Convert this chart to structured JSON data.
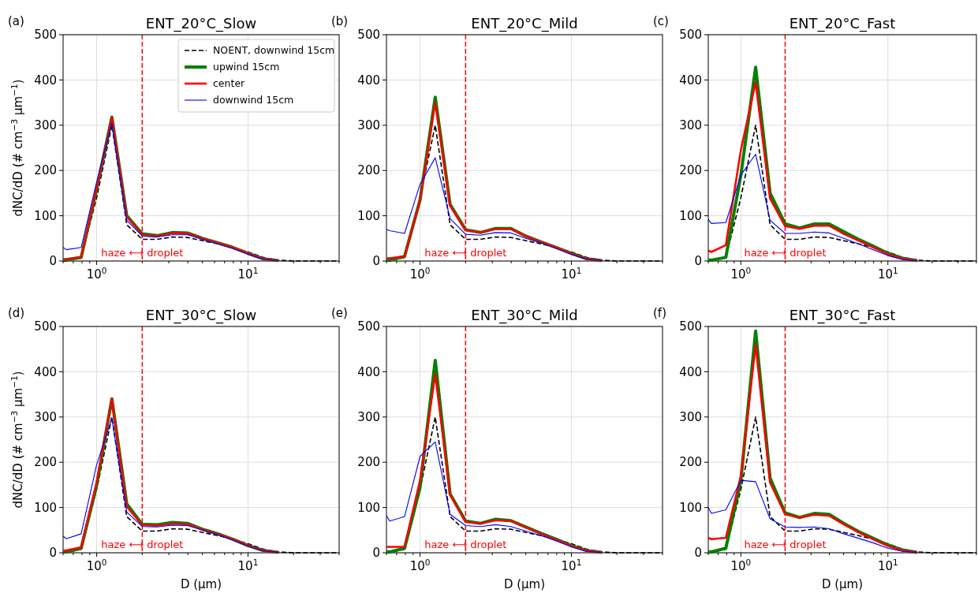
{
  "chart_data": [
    {
      "type": "line",
      "title": "ENT_20°C_Slow",
      "ylabel": "dNC/dD (# cm$^{−3}$ μm$^{−1}$)",
      "annotations": [
        "(a)"
      ],
      "log": "x",
      "grid": true,
      "legend": "top right",
      "xlim": [
        0.6,
        40
      ],
      "ylim": [
        0,
        500
      ],
      "xticks": [
        {
          "value": 0.6,
          "label": null
        },
        {
          "value": 0.7,
          "label": null
        },
        {
          "value": 0.8,
          "label": null
        },
        {
          "value": 0.9,
          "label": null
        },
        {
          "value": 1,
          "label": "10$^{0}$"
        },
        {
          "value": 2,
          "label": null
        },
        {
          "value": 3,
          "label": null
        },
        {
          "value": 4,
          "label": null
        },
        {
          "value": 5,
          "label": null
        },
        {
          "value": 6,
          "label": null
        },
        {
          "value": 7,
          "label": null
        },
        {
          "value": 8,
          "label": null
        },
        {
          "value": 9,
          "label": null
        },
        {
          "value": 10,
          "label": "10$^{1}$"
        },
        {
          "value": 20,
          "label": null
        },
        {
          "value": 30,
          "label": null
        },
        {
          "value": 40,
          "label": null
        }
      ],
      "yticks": [
        0,
        100,
        200,
        300,
        400,
        500
      ],
      "ref_lines": [
        {
          "axis": "x",
          "value": 2,
          "label": "haze ⟷ droplet",
          "color": "#ff0000",
          "line_style": "dashed"
        }
      ],
      "x": [
        0.6,
        0.63,
        0.79,
        1,
        1.26,
        1.58,
        2,
        2.51,
        3.16,
        3.98,
        5.01,
        6.31,
        7.94,
        10,
        12.6,
        15.8,
        20,
        25.1,
        31.6,
        39.8
      ],
      "series": [
        {
          "name": "NOENT, downwind 15cm",
          "color": "#000000",
          "line_style": "dashed",
          "values": [
            0,
            0,
            8,
            140,
            300,
            80,
            48,
            48,
            53,
            52,
            45,
            38,
            30,
            20,
            8,
            2,
            0,
            0,
            0,
            0
          ]
        },
        {
          "name": "upwind 15cm",
          "color": "#008000",
          "values": [
            3,
            3,
            8,
            159,
            318,
            100,
            60,
            56,
            63,
            62,
            50,
            40,
            30,
            17,
            5,
            1,
            null,
            null,
            null,
            null
          ]
        },
        {
          "name": "center",
          "color": "#ff0000",
          "values": [
            3,
            3,
            9,
            160,
            317,
            98,
            58,
            55,
            62,
            61,
            50,
            40,
            30,
            17,
            5,
            1,
            null,
            null,
            null,
            null
          ]
        },
        {
          "name": "downwind 15cm",
          "color": "#0000ff",
          "values": [
            30,
            25,
            30,
            175,
            305,
            90,
            55,
            53,
            58,
            58,
            48,
            38,
            28,
            15,
            4,
            1,
            null,
            null,
            null,
            null
          ]
        }
      ]
    },
    {
      "type": "line",
      "title": "ENT_20°C_Mild",
      "annotations": [
        "(b)"
      ],
      "log": "x",
      "grid": true,
      "xlim": [
        0.6,
        40
      ],
      "ylim": [
        0,
        500
      ],
      "xticks": [
        {
          "value": 0.6,
          "label": null
        },
        {
          "value": 0.7,
          "label": null
        },
        {
          "value": 0.8,
          "label": null
        },
        {
          "value": 0.9,
          "label": null
        },
        {
          "value": 1,
          "label": "10$^{0}$"
        },
        {
          "value": 2,
          "label": null
        },
        {
          "value": 3,
          "label": null
        },
        {
          "value": 4,
          "label": null
        },
        {
          "value": 5,
          "label": null
        },
        {
          "value": 6,
          "label": null
        },
        {
          "value": 7,
          "label": null
        },
        {
          "value": 8,
          "label": null
        },
        {
          "value": 9,
          "label": null
        },
        {
          "value": 10,
          "label": "10$^{1}$"
        },
        {
          "value": 20,
          "label": null
        },
        {
          "value": 30,
          "label": null
        },
        {
          "value": 40,
          "label": null
        }
      ],
      "yticks": [
        0,
        100,
        200,
        300,
        400,
        500
      ],
      "ref_lines": [
        {
          "axis": "x",
          "value": 2,
          "label": "haze ⟷ droplet",
          "color": "#ff0000",
          "line_style": "dashed"
        }
      ],
      "x": [
        0.6,
        0.63,
        0.79,
        1,
        1.26,
        1.58,
        2,
        2.51,
        3.16,
        3.98,
        5.01,
        6.31,
        7.94,
        10,
        12.6,
        15.8,
        20,
        25.1,
        31.6,
        39.8
      ],
      "series": [
        {
          "color": "#000000",
          "line_style": "dashed",
          "values": [
            0,
            0,
            8,
            140,
            300,
            80,
            48,
            48,
            53,
            52,
            45,
            38,
            30,
            20,
            8,
            2,
            0,
            0,
            0,
            0
          ]
        },
        {
          "color": "#008000",
          "values": [
            3,
            3,
            10,
            135,
            362,
            125,
            69,
            63,
            72,
            72,
            55,
            42,
            30,
            17,
            5,
            1,
            null,
            null,
            null,
            null
          ]
        },
        {
          "color": "#ff0000",
          "values": [
            6,
            6,
            10,
            135,
            350,
            122,
            68,
            63,
            71,
            71,
            55,
            42,
            30,
            16,
            5,
            1,
            null,
            null,
            null,
            null
          ]
        },
        {
          "color": "#0000ff",
          "values": [
            70,
            67,
            61,
            170,
            228,
            94,
            59,
            57,
            63,
            62,
            50,
            40,
            28,
            15,
            4,
            1,
            null,
            null,
            null,
            null
          ]
        }
      ]
    },
    {
      "type": "line",
      "title": "ENT_20°C_Fast",
      "annotations": [
        "(c)"
      ],
      "log": "x",
      "grid": true,
      "xlim": [
        0.6,
        40
      ],
      "ylim": [
        0,
        500
      ],
      "xticks": [
        {
          "value": 0.6,
          "label": null
        },
        {
          "value": 0.7,
          "label": null
        },
        {
          "value": 0.8,
          "label": null
        },
        {
          "value": 0.9,
          "label": null
        },
        {
          "value": 1,
          "label": "10$^{0}$"
        },
        {
          "value": 2,
          "label": null
        },
        {
          "value": 3,
          "label": null
        },
        {
          "value": 4,
          "label": null
        },
        {
          "value": 5,
          "label": null
        },
        {
          "value": 6,
          "label": null
        },
        {
          "value": 7,
          "label": null
        },
        {
          "value": 8,
          "label": null
        },
        {
          "value": 9,
          "label": null
        },
        {
          "value": 10,
          "label": "10$^{1}$"
        },
        {
          "value": 20,
          "label": null
        },
        {
          "value": 30,
          "label": null
        },
        {
          "value": 40,
          "label": null
        }
      ],
      "yticks": [
        0,
        100,
        200,
        300,
        400,
        500
      ],
      "ref_lines": [
        {
          "axis": "x",
          "value": 2,
          "label": "haze ⟷ droplet",
          "color": "#ff0000",
          "line_style": "dashed"
        }
      ],
      "x": [
        0.6,
        0.63,
        0.79,
        1,
        1.26,
        1.58,
        2,
        2.51,
        3.16,
        3.98,
        5.01,
        6.31,
        7.94,
        10,
        12.6,
        15.8,
        20,
        25.1,
        31.6,
        39.8
      ],
      "series": [
        {
          "color": "#000000",
          "line_style": "dashed",
          "values": [
            0,
            0,
            8,
            140,
            300,
            80,
            48,
            48,
            53,
            52,
            45,
            38,
            30,
            20,
            8,
            2,
            0,
            0,
            0,
            0
          ]
        },
        {
          "color": "#008000",
          "values": [
            2,
            2,
            8,
            190,
            428,
            150,
            82,
            73,
            82,
            82,
            65,
            48,
            33,
            17,
            6,
            1,
            null,
            null,
            null,
            null
          ]
        },
        {
          "color": "#ff0000",
          "values": [
            23,
            20,
            35,
            245,
            395,
            138,
            77,
            71,
            78,
            78,
            60,
            45,
            30,
            15,
            5,
            1,
            null,
            null,
            null,
            null
          ]
        },
        {
          "color": "#0000ff",
          "values": [
            92,
            83,
            85,
            190,
            236,
            90,
            61,
            61,
            64,
            62,
            50,
            38,
            25,
            12,
            3,
            1,
            null,
            null,
            null,
            null
          ]
        }
      ]
    },
    {
      "type": "line",
      "title": "ENT_30°C_Slow",
      "xlabel": "D (μm)",
      "ylabel": "dNC/dD (# cm$^{−3}$ μm$^{−1}$)",
      "annotations": [
        "(d)"
      ],
      "log": "x",
      "grid": true,
      "xlim": [
        0.6,
        40
      ],
      "ylim": [
        0,
        500
      ],
      "xticks": [
        {
          "value": 0.6,
          "label": null
        },
        {
          "value": 0.7,
          "label": null
        },
        {
          "value": 0.8,
          "label": null
        },
        {
          "value": 0.9,
          "label": null
        },
        {
          "value": 1,
          "label": "10$^{0}$"
        },
        {
          "value": 2,
          "label": null
        },
        {
          "value": 3,
          "label": null
        },
        {
          "value": 4,
          "label": null
        },
        {
          "value": 5,
          "label": null
        },
        {
          "value": 6,
          "label": null
        },
        {
          "value": 7,
          "label": null
        },
        {
          "value": 8,
          "label": null
        },
        {
          "value": 9,
          "label": null
        },
        {
          "value": 10,
          "label": "10$^{1}$"
        },
        {
          "value": 20,
          "label": null
        },
        {
          "value": 30,
          "label": null
        },
        {
          "value": 40,
          "label": null
        }
      ],
      "yticks": [
        0,
        100,
        200,
        300,
        400,
        500
      ],
      "ref_lines": [
        {
          "axis": "x",
          "value": 2,
          "label": "haze ⟷ droplet",
          "color": "#ff0000",
          "line_style": "dashed"
        }
      ],
      "x": [
        0.6,
        0.63,
        0.79,
        1,
        1.26,
        1.58,
        2,
        2.51,
        3.16,
        3.98,
        5.01,
        6.31,
        7.94,
        10,
        12.6,
        15.8,
        20,
        25.1,
        31.6,
        39.8
      ],
      "series": [
        {
          "color": "#000000",
          "line_style": "dashed",
          "values": [
            0,
            0,
            8,
            140,
            300,
            80,
            48,
            48,
            53,
            52,
            45,
            38,
            30,
            20,
            8,
            2,
            0,
            0,
            0,
            0
          ]
        },
        {
          "color": "#008000",
          "values": [
            2,
            2,
            10,
            150,
            340,
            108,
            63,
            62,
            67,
            65,
            52,
            42,
            30,
            16,
            5,
            1,
            null,
            null,
            null,
            null
          ]
        },
        {
          "color": "#ff0000",
          "values": [
            5,
            5,
            12,
            155,
            340,
            102,
            61,
            60,
            64,
            63,
            51,
            41,
            30,
            16,
            5,
            1,
            null,
            null,
            null,
            null
          ]
        },
        {
          "color": "#0000ff",
          "values": [
            37,
            31,
            42,
            195,
            297,
            90,
            58,
            57,
            61,
            60,
            50,
            40,
            28,
            15,
            4,
            1,
            null,
            null,
            null,
            null
          ]
        }
      ]
    },
    {
      "type": "line",
      "title": "ENT_30°C_Mild",
      "xlabel": "D (μm)",
      "annotations": [
        "(e)"
      ],
      "log": "x",
      "grid": true,
      "xlim": [
        0.6,
        40
      ],
      "ylim": [
        0,
        500
      ],
      "xticks": [
        {
          "value": 0.6,
          "label": null
        },
        {
          "value": 0.7,
          "label": null
        },
        {
          "value": 0.8,
          "label": null
        },
        {
          "value": 0.9,
          "label": null
        },
        {
          "value": 1,
          "label": "10$^{0}$"
        },
        {
          "value": 2,
          "label": null
        },
        {
          "value": 3,
          "label": null
        },
        {
          "value": 4,
          "label": null
        },
        {
          "value": 5,
          "label": null
        },
        {
          "value": 6,
          "label": null
        },
        {
          "value": 7,
          "label": null
        },
        {
          "value": 8,
          "label": null
        },
        {
          "value": 9,
          "label": null
        },
        {
          "value": 10,
          "label": "10$^{1}$"
        },
        {
          "value": 20,
          "label": null
        },
        {
          "value": 30,
          "label": null
        },
        {
          "value": 40,
          "label": null
        }
      ],
      "yticks": [
        0,
        100,
        200,
        300,
        400,
        500
      ],
      "ref_lines": [
        {
          "axis": "x",
          "value": 2,
          "label": "haze ⟷ droplet",
          "color": "#ff0000",
          "line_style": "dashed"
        }
      ],
      "x": [
        0.6,
        0.63,
        0.79,
        1,
        1.26,
        1.58,
        2,
        2.51,
        3.16,
        3.98,
        5.01,
        6.31,
        7.94,
        10,
        12.6,
        15.8,
        20,
        25.1,
        31.6,
        39.8
      ],
      "series": [
        {
          "color": "#000000",
          "line_style": "dashed",
          "values": [
            0,
            0,
            8,
            140,
            300,
            80,
            48,
            48,
            53,
            52,
            45,
            38,
            30,
            20,
            8,
            2,
            0,
            0,
            0,
            0
          ]
        },
        {
          "color": "#008000",
          "values": [
            2,
            2,
            10,
            144,
            425,
            130,
            70,
            65,
            74,
            71,
            57,
            43,
            30,
            16,
            5,
            1,
            null,
            null,
            null,
            null
          ]
        },
        {
          "color": "#ff0000",
          "values": [
            13,
            13,
            13,
            160,
            395,
            128,
            68,
            65,
            72,
            70,
            56,
            42,
            29,
            15,
            5,
            1,
            null,
            null,
            null,
            null
          ]
        },
        {
          "color": "#0000ff",
          "values": [
            82,
            70,
            80,
            213,
            245,
            85,
            60,
            58,
            62,
            58,
            48,
            38,
            26,
            13,
            3,
            1,
            null,
            null,
            null,
            null
          ]
        }
      ]
    },
    {
      "type": "line",
      "title": "ENT_30°C_Fast",
      "xlabel": "D (μm)",
      "annotations": [
        "(f)"
      ],
      "log": "x",
      "grid": true,
      "xlim": [
        0.6,
        40
      ],
      "ylim": [
        0,
        500
      ],
      "xticks": [
        {
          "value": 0.6,
          "label": null
        },
        {
          "value": 0.7,
          "label": null
        },
        {
          "value": 0.8,
          "label": null
        },
        {
          "value": 0.9,
          "label": null
        },
        {
          "value": 1,
          "label": "10$^{0}$"
        },
        {
          "value": 2,
          "label": null
        },
        {
          "value": 3,
          "label": null
        },
        {
          "value": 4,
          "label": null
        },
        {
          "value": 5,
          "label": null
        },
        {
          "value": 6,
          "label": null
        },
        {
          "value": 7,
          "label": null
        },
        {
          "value": 8,
          "label": null
        },
        {
          "value": 9,
          "label": null
        },
        {
          "value": 10,
          "label": "10$^{1}$"
        },
        {
          "value": 20,
          "label": null
        },
        {
          "value": 30,
          "label": null
        },
        {
          "value": 40,
          "label": null
        }
      ],
      "yticks": [
        0,
        100,
        200,
        300,
        400,
        500
      ],
      "ref_lines": [
        {
          "axis": "x",
          "value": 2,
          "label": "haze ⟷ droplet",
          "color": "#ff0000",
          "line_style": "dashed"
        }
      ],
      "x": [
        0.6,
        0.63,
        0.79,
        1,
        1.26,
        1.58,
        2,
        2.51,
        3.16,
        3.98,
        5.01,
        6.31,
        7.94,
        10,
        12.6,
        15.8,
        20,
        25.1,
        31.6,
        39.8
      ],
      "series": [
        {
          "color": "#000000",
          "line_style": "dashed",
          "values": [
            0,
            0,
            8,
            140,
            300,
            80,
            48,
            48,
            53,
            52,
            45,
            38,
            30,
            20,
            8,
            2,
            0,
            0,
            0,
            0
          ]
        },
        {
          "color": "#008000",
          "values": [
            2,
            2,
            10,
            160,
            490,
            165,
            88,
            78,
            87,
            85,
            65,
            47,
            32,
            17,
            6,
            1,
            null,
            null,
            null,
            null
          ]
        },
        {
          "color": "#ff0000",
          "values": [
            33,
            30,
            33,
            170,
            460,
            155,
            85,
            78,
            84,
            82,
            63,
            45,
            30,
            15,
            5,
            1,
            null,
            null,
            null,
            null
          ]
        },
        {
          "color": "#0000ff",
          "values": [
            100,
            87,
            95,
            160,
            157,
            75,
            57,
            56,
            57,
            53,
            42,
            32,
            22,
            10,
            3,
            1,
            null,
            null,
            null,
            null
          ]
        }
      ]
    }
  ]
}
